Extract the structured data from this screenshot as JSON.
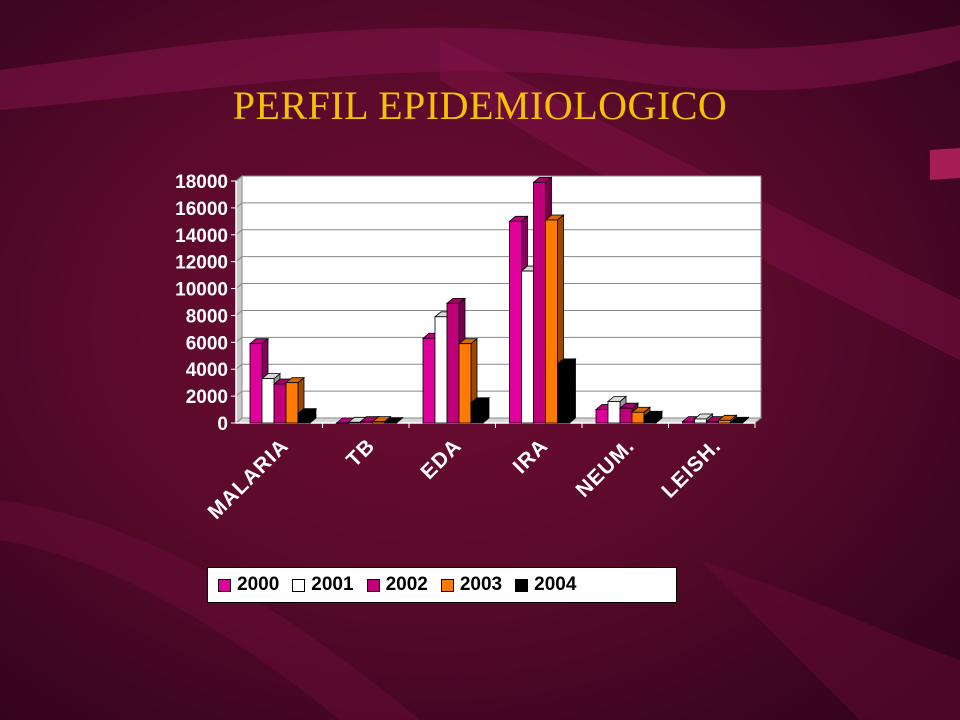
{
  "title": "PERFIL EPIDEMIOLOGICO",
  "chart_data": {
    "type": "bar",
    "categories": [
      "MALARIA",
      "TB",
      "EDA",
      "IRA",
      "NEUM.",
      "LEISH."
    ],
    "series": [
      {
        "name": "2000",
        "color": "#e0009a",
        "values": [
          5900,
          0,
          6300,
          15000,
          1000,
          100
        ]
      },
      {
        "name": "2001",
        "color": "#ffffff",
        "values": [
          3300,
          50,
          7900,
          11300,
          1600,
          300
        ]
      },
      {
        "name": "2002",
        "color": "#c0007a",
        "values": [
          2900,
          100,
          8900,
          17900,
          1100,
          100
        ]
      },
      {
        "name": "2003",
        "color": "#ff7a00",
        "values": [
          3000,
          100,
          5900,
          15100,
          800,
          200
        ]
      },
      {
        "name": "2004",
        "color": "#000000",
        "values": [
          700,
          30,
          1500,
          4400,
          500,
          50
        ]
      }
    ],
    "ylim": [
      0,
      18000
    ],
    "yticks": [
      0,
      2000,
      4000,
      6000,
      8000,
      10000,
      12000,
      14000,
      16000,
      18000
    ],
    "grid": true,
    "legend_position": "bottom"
  }
}
